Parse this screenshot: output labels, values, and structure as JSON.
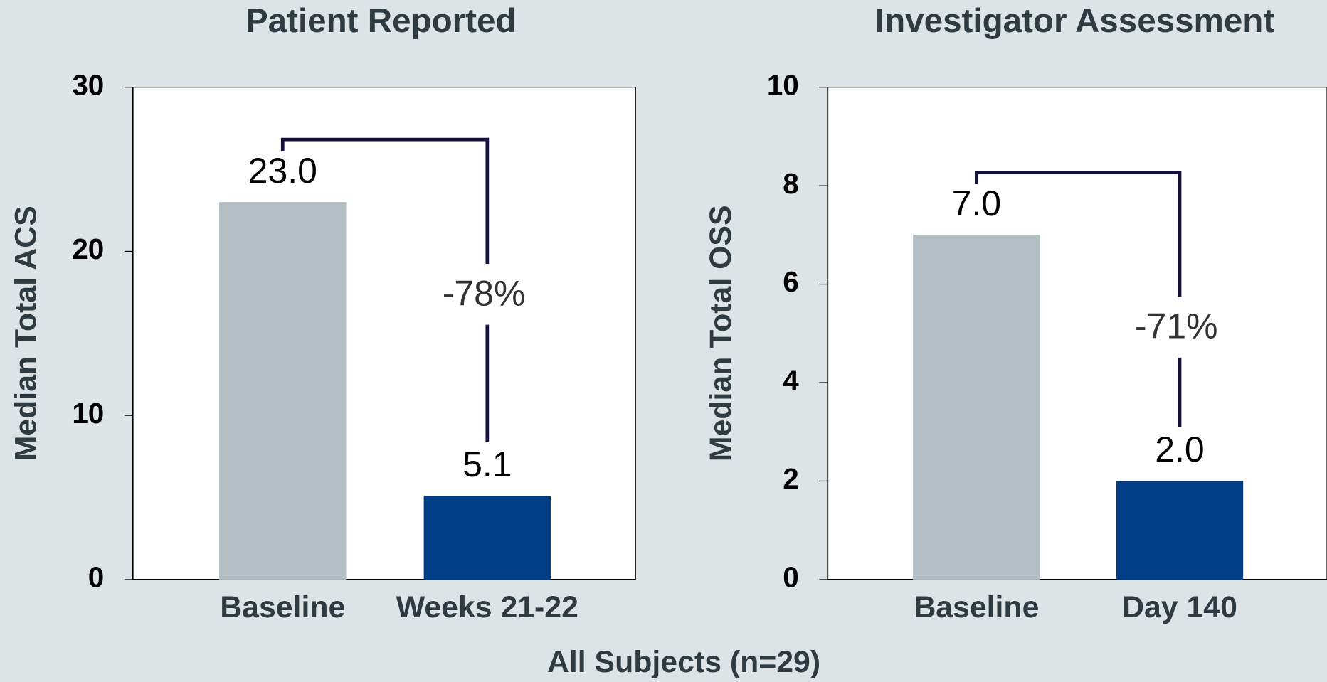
{
  "chart_data": [
    {
      "type": "bar",
      "title": "Patient Reported",
      "ylabel": "Median Total ACS",
      "categories": [
        "Baseline",
        "Weeks 21-22"
      ],
      "values": [
        23.0,
        5.1
      ],
      "value_labels": [
        "23.0",
        "5.1"
      ],
      "colors": [
        "#b3bfc4",
        "#003f87"
      ],
      "annotation": "-78%",
      "ylim": [
        0,
        30
      ],
      "yticks": [
        0,
        10,
        20,
        30
      ]
    },
    {
      "type": "bar",
      "title": "Investigator Assessment",
      "ylabel": "Median Total OSS",
      "categories": [
        "Baseline",
        "Day 140"
      ],
      "values": [
        7.0,
        2.0
      ],
      "value_labels": [
        "7.0",
        "2.0"
      ],
      "colors": [
        "#b3bfc4",
        "#003f87"
      ],
      "annotation": "-71%",
      "ylim": [
        0,
        10
      ],
      "yticks": [
        0,
        2,
        4,
        6,
        8,
        10
      ]
    }
  ],
  "footer": "All Subjects (n=29)"
}
